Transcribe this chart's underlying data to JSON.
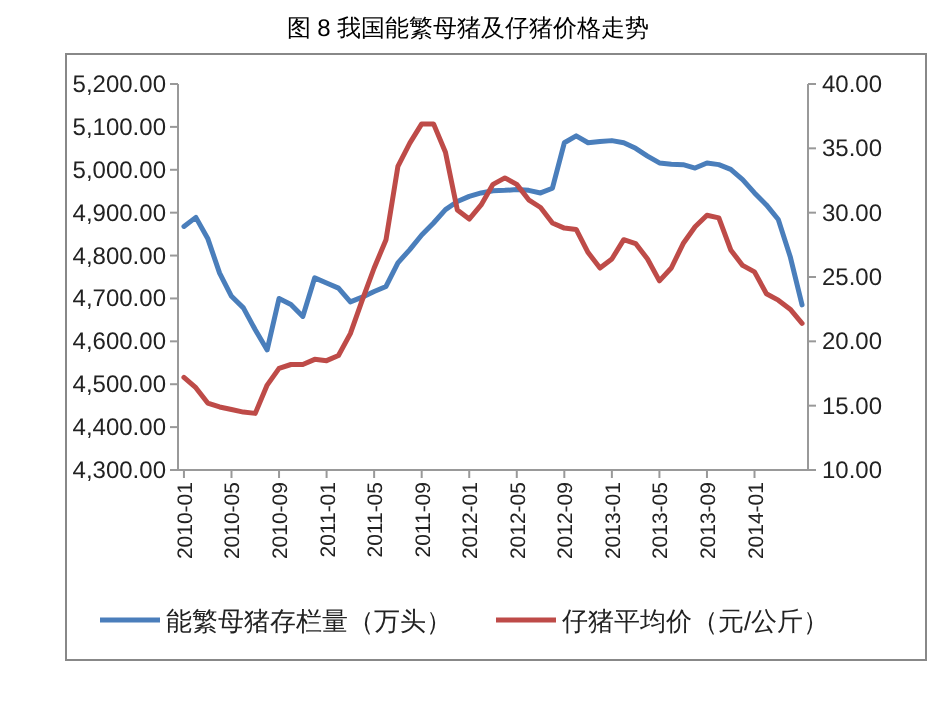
{
  "chart_data": {
    "type": "line",
    "title": "图 8  我国能繁母猪及仔猪价格走势",
    "categories": [
      "2010-01",
      null,
      null,
      null,
      "2010-05",
      null,
      null,
      null,
      "2010-09",
      null,
      null,
      null,
      "2011-01",
      null,
      null,
      null,
      "2011-05",
      null,
      null,
      null,
      "2011-09",
      null,
      null,
      null,
      "2012-01",
      null,
      null,
      null,
      "2012-05",
      null,
      null,
      null,
      "2012-09",
      null,
      null,
      null,
      "2013-01",
      null,
      null,
      null,
      "2013-05",
      null,
      null,
      null,
      "2013-09",
      null,
      null,
      null,
      "2014-01",
      null,
      null,
      null,
      null
    ],
    "series": [
      {
        "name": "能繁母猪存栏量（万头）",
        "color": "#4a7ebb",
        "values": [
          4868,
          4889,
          4840,
          4759,
          4705,
          4678,
          4627,
          4580,
          4700,
          4686,
          4658,
          4748,
          4736,
          4724,
          4692,
          4703,
          4716,
          4728,
          4783,
          4814,
          4848,
          4876,
          4907,
          4926,
          4938,
          4946,
          4951,
          4952,
          4954,
          4952,
          4946,
          4957,
          5063,
          5079,
          5063,
          5066,
          5068,
          5063,
          5050,
          5032,
          5016,
          5013,
          5012,
          5004,
          5016,
          5012,
          5001,
          4977,
          4946,
          4918,
          4884,
          4798,
          4685
        ]
      },
      {
        "name": "仔猪平均价（元/公斤）",
        "color": "#be4b48",
        "axis": "y2",
        "values": [
          17.2,
          16.4,
          15.2,
          14.9,
          14.7,
          14.5,
          14.4,
          16.6,
          17.9,
          18.2,
          18.2,
          18.6,
          18.5,
          18.9,
          20.6,
          23.2,
          25.7,
          27.9,
          33.6,
          35.4,
          36.9,
          36.9,
          34.7,
          30.2,
          29.5,
          30.6,
          32.2,
          32.7,
          32.2,
          31.0,
          30.4,
          29.2,
          28.8,
          28.7,
          26.9,
          25.7,
          26.4,
          27.9,
          27.6,
          26.4,
          24.7,
          25.7,
          27.6,
          28.9,
          29.8,
          29.6,
          27.1,
          25.9,
          25.4,
          23.7,
          23.2,
          22.5,
          21.4
        ]
      }
    ],
    "ylim": [
      4300,
      5200
    ],
    "yticks": [
      {
        "value": 4300,
        "label": "4,300.00"
      },
      {
        "value": 4400,
        "label": "4,400.00"
      },
      {
        "value": 4500,
        "label": "4,500.00"
      },
      {
        "value": 4600,
        "label": "4,600.00"
      },
      {
        "value": 4700,
        "label": "4,700.00"
      },
      {
        "value": 4800,
        "label": "4,800.00"
      },
      {
        "value": 4900,
        "label": "4,900.00"
      },
      {
        "value": 5000,
        "label": "5,000.00"
      },
      {
        "value": 5100,
        "label": "5,100.00"
      },
      {
        "value": 5200,
        "label": "5,200.00"
      }
    ],
    "y2lim": [
      10,
      40
    ],
    "y2ticks": [
      {
        "value": 10,
        "label": "10.00"
      },
      {
        "value": 15,
        "label": "15.00"
      },
      {
        "value": 20,
        "label": "20.00"
      },
      {
        "value": 25,
        "label": "25.00"
      },
      {
        "value": 30,
        "label": "30.00"
      },
      {
        "value": 35,
        "label": "35.00"
      },
      {
        "value": 40,
        "label": "40.00"
      }
    ],
    "legend": "bottom",
    "grid": false,
    "marker": "none",
    "line_style": "solid"
  }
}
